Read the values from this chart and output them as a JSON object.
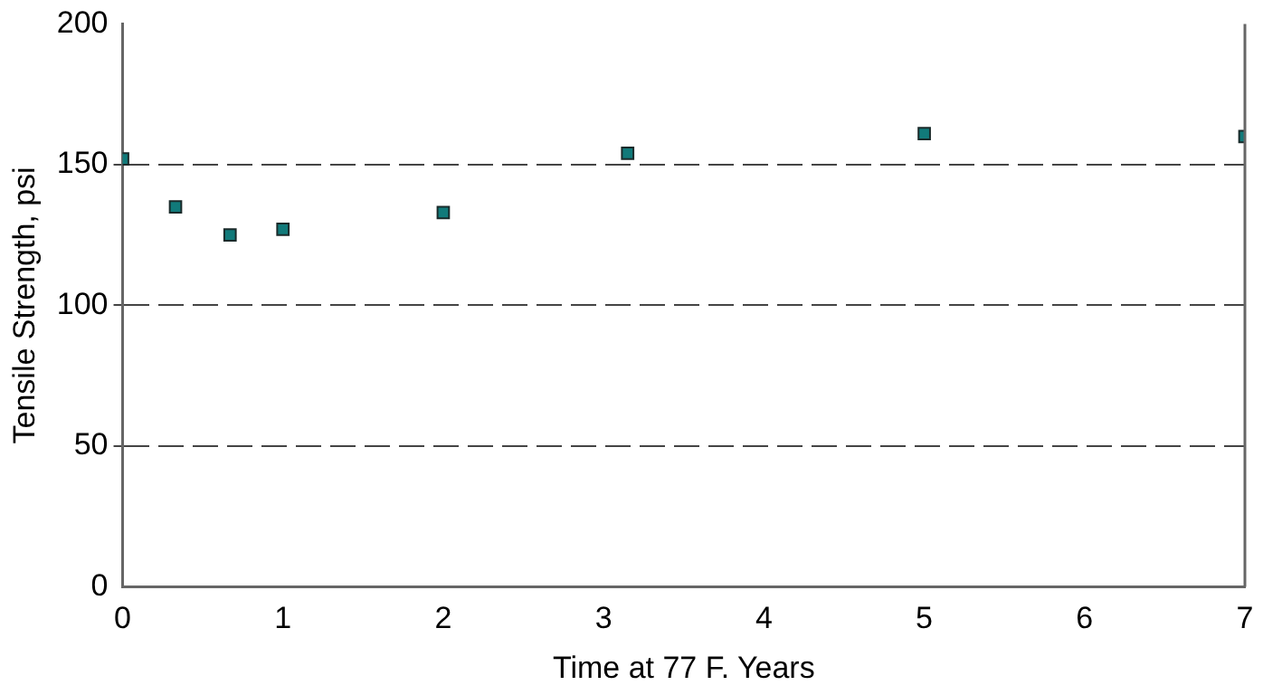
{
  "chart_data": {
    "type": "scatter",
    "xlabel": "Time at 77 F. Years",
    "ylabel": "Tensile Strength, psi",
    "x": [
      0,
      0.33,
      0.67,
      1,
      2,
      3.15,
      5,
      7
    ],
    "series": [
      {
        "color": "#117a7a",
        "values": [
          152,
          135,
          125,
          127,
          133,
          154,
          161,
          160
        ]
      }
    ],
    "xlim": [
      0,
      7
    ],
    "xticks": [
      0,
      1,
      2,
      3,
      4,
      5,
      6,
      7
    ],
    "ylim": [
      0,
      200
    ],
    "yticks": [
      0,
      50,
      100,
      150,
      200
    ],
    "grid": "y",
    "legend": false,
    "marker": "square"
  }
}
